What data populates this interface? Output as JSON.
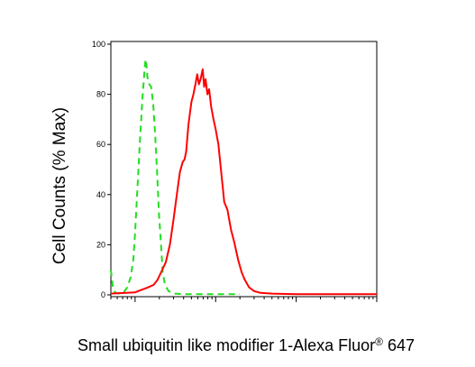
{
  "chart_data": {
    "type": "line",
    "title": "",
    "ylabel": "Cell Counts (% Max)",
    "xlabel": "Small ubiquitin like modifier 1-Alexa Fluor",
    "xlabel_superscript": "®",
    "xlabel_suffix": " 647",
    "x_scale": "log",
    "xlim": [
      0.5,
      1000
    ],
    "ylim": [
      0,
      100
    ],
    "yticks": [
      0,
      20,
      40,
      60,
      80,
      100
    ],
    "ytick_labels": [
      "0",
      "20",
      "40",
      "60",
      "80",
      "100"
    ],
    "grid": false,
    "series": [
      {
        "color": "#22dd22",
        "dash": "dashed",
        "points": [
          [
            0.5,
            10
          ],
          [
            0.53,
            3
          ],
          [
            0.56,
            1
          ],
          [
            0.62,
            0.5
          ],
          [
            0.72,
            1
          ],
          [
            0.8,
            3
          ],
          [
            0.88,
            7
          ],
          [
            0.95,
            14
          ],
          [
            1.0,
            25
          ],
          [
            1.05,
            38
          ],
          [
            1.1,
            50
          ],
          [
            1.15,
            62
          ],
          [
            1.19,
            70
          ],
          [
            1.23,
            78
          ],
          [
            1.27,
            84
          ],
          [
            1.31,
            90
          ],
          [
            1.35,
            94
          ],
          [
            1.38,
            92
          ],
          [
            1.42,
            87
          ],
          [
            1.5,
            84
          ],
          [
            1.58,
            83
          ],
          [
            1.68,
            76
          ],
          [
            1.78,
            63
          ],
          [
            1.88,
            48
          ],
          [
            1.98,
            32
          ],
          [
            2.1,
            20
          ],
          [
            2.2,
            9
          ],
          [
            2.35,
            4
          ],
          [
            2.6,
            1.5
          ],
          [
            3.0,
            0.5
          ],
          [
            4.0,
            0.3
          ],
          [
            6.0,
            0.3
          ],
          [
            10.0,
            0.3
          ],
          [
            20.0,
            0.3
          ]
        ]
      },
      {
        "color": "#ff0000",
        "dash": "solid",
        "points": [
          [
            0.5,
            0.5
          ],
          [
            1.0,
            1
          ],
          [
            1.2,
            2
          ],
          [
            1.45,
            3
          ],
          [
            1.7,
            4
          ],
          [
            1.9,
            6
          ],
          [
            2.1,
            9
          ],
          [
            2.4,
            13
          ],
          [
            2.7,
            20
          ],
          [
            3.0,
            30
          ],
          [
            3.3,
            40
          ],
          [
            3.6,
            49
          ],
          [
            3.9,
            53
          ],
          [
            4.1,
            54
          ],
          [
            4.3,
            57
          ],
          [
            4.6,
            68
          ],
          [
            5.0,
            77
          ],
          [
            5.3,
            80
          ],
          [
            5.6,
            84
          ],
          [
            5.9,
            88
          ],
          [
            6.2,
            84
          ],
          [
            6.5,
            86
          ],
          [
            6.9,
            90
          ],
          [
            7.2,
            83
          ],
          [
            7.5,
            86
          ],
          [
            7.9,
            80
          ],
          [
            8.3,
            82
          ],
          [
            8.8,
            75
          ],
          [
            9.4,
            70
          ],
          [
            10,
            66
          ],
          [
            10.8,
            60
          ],
          [
            11.8,
            48
          ],
          [
            12.8,
            37
          ],
          [
            14,
            34
          ],
          [
            15.5,
            26
          ],
          [
            17,
            21
          ],
          [
            19,
            14
          ],
          [
            21,
            9
          ],
          [
            23,
            6
          ],
          [
            26,
            3
          ],
          [
            30,
            1.5
          ],
          [
            36,
            0.8
          ],
          [
            50,
            0.5
          ],
          [
            100,
            0.3
          ],
          [
            200,
            0.3
          ],
          [
            500,
            0.3
          ],
          [
            1000,
            0.3
          ]
        ]
      }
    ]
  }
}
